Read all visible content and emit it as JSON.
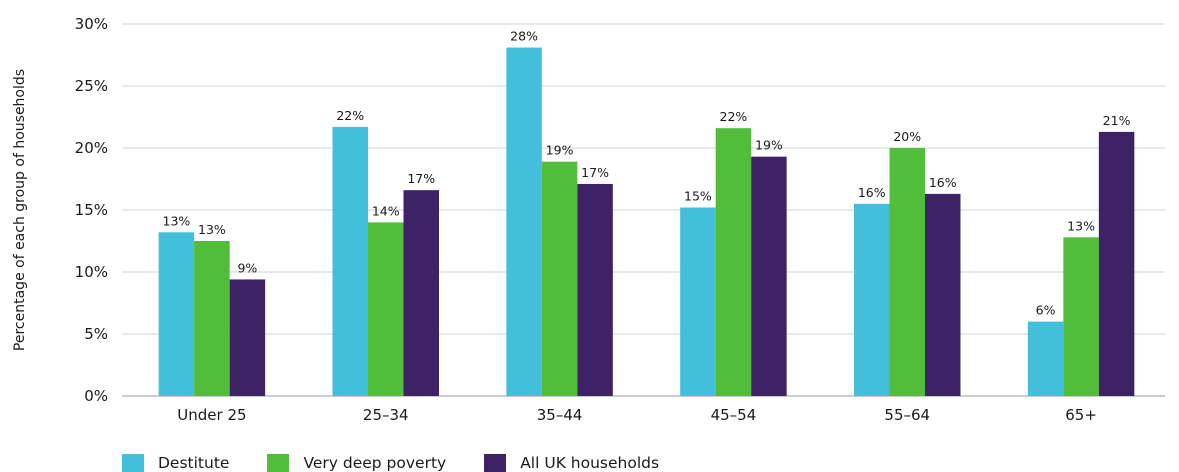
{
  "chart_data": {
    "type": "bar",
    "ylabel": "Percentage of each group of households",
    "xlabel": "",
    "title": "",
    "categories": [
      "Under 25",
      "25–34",
      "35–44",
      "45–54",
      "55–64",
      "65+"
    ],
    "ylim": [
      0,
      30
    ],
    "yticks": [
      "0%",
      "5%",
      "10%",
      "15%",
      "20%",
      "25%",
      "30%"
    ],
    "grid": true,
    "legend_position": "bottom-left",
    "series": [
      {
        "name": "Destitute",
        "color": "#44BFDB",
        "values": [
          13.2,
          21.7,
          28.1,
          15.2,
          15.5,
          6.0
        ],
        "labels": [
          "13%",
          "22%",
          "28%",
          "15%",
          "16%",
          "6%"
        ]
      },
      {
        "name": "Very deep poverty",
        "color": "#51BD3A",
        "values": [
          12.5,
          14.0,
          18.9,
          21.6,
          20.0,
          12.8
        ],
        "labels": [
          "13%",
          "14%",
          "19%",
          "22%",
          "20%",
          "13%"
        ]
      },
      {
        "name": "All UK households",
        "color": "#3E2266",
        "values": [
          9.4,
          16.6,
          17.1,
          19.3,
          16.3,
          21.3
        ],
        "labels": [
          "9%",
          "17%",
          "17%",
          "19%",
          "16%",
          "21%"
        ]
      }
    ]
  }
}
